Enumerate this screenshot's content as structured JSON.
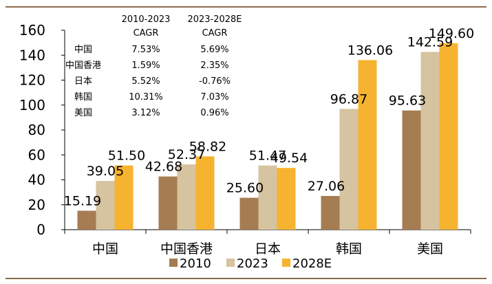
{
  "chart_data": {
    "type": "bar",
    "categories": [
      "中国",
      "中国香港",
      "日本",
      "韩国",
      "美国"
    ],
    "series": [
      {
        "name": "2010",
        "color": "#a67c52",
        "values": [
          15.19,
          42.68,
          25.6,
          27.06,
          95.63
        ],
        "labels": [
          "15.19",
          "42.68",
          "25.60",
          "27.06",
          "95.63"
        ]
      },
      {
        "name": "2023",
        "color": "#d6c39f",
        "values": [
          39.05,
          52.37,
          51.47,
          96.87,
          142.59
        ],
        "labels": [
          "39.05",
          "52.37",
          "51.47",
          "96.87",
          "142.59"
        ]
      },
      {
        "name": "2028E",
        "color": "#f5b330",
        "values": [
          51.5,
          58.82,
          49.54,
          136.06,
          149.6
        ],
        "labels": [
          "51.50",
          "58.82",
          "49.54",
          "136.06",
          "149.60"
        ]
      }
    ],
    "ylim": [
      0,
      160
    ],
    "yticks": [
      0,
      20,
      40,
      60,
      80,
      100,
      120,
      140,
      160
    ],
    "grid": false,
    "legend_position": "bottom",
    "cagr_table": {
      "headers": [
        [
          "2010-2023",
          "CAGR"
        ],
        [
          "2023-2028E",
          "CAGR"
        ]
      ],
      "rows": [
        {
          "label": "中国",
          "c1": "7.53%",
          "c2": "5.69%"
        },
        {
          "label": "中国香港",
          "c1": "1.59%",
          "c2": "2.35%"
        },
        {
          "label": "日本",
          "c1": "5.52%",
          "c2": "-0.76%"
        },
        {
          "label": "韩国",
          "c1": "10.31%",
          "c2": "7.03%"
        },
        {
          "label": "美国",
          "c1": "3.12%",
          "c2": "0.96%"
        }
      ]
    }
  },
  "colors": {
    "rule": "#8b6a4e",
    "axis": "#000000"
  }
}
